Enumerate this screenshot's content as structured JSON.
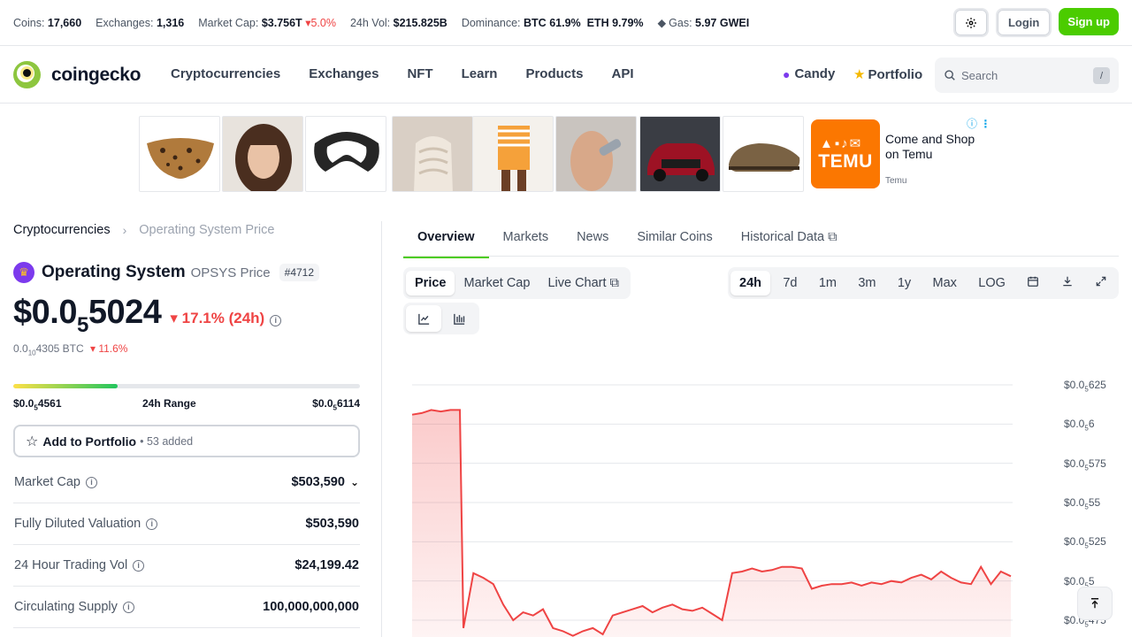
{
  "stats": {
    "coins_label": "Coins:",
    "coins": "17,660",
    "exchanges_label": "Exchanges:",
    "exchanges": "1,316",
    "mcap_label": "Market Cap:",
    "mcap": "$3.756T",
    "mcap_change": "5.0%",
    "vol_label": "24h Vol:",
    "vol": "$215.825B",
    "dominance_label": "Dominance:",
    "btc_label": "BTC",
    "btc": "61.9%",
    "eth_label": "ETH",
    "eth": "9.79%",
    "gas_label": "Gas:",
    "gas": "5.97 GWEI"
  },
  "auth": {
    "login": "Login",
    "signup": "Sign up"
  },
  "nav": {
    "brand": "coingecko",
    "links": [
      "Cryptocurrencies",
      "Exchanges",
      "NFT",
      "Learn",
      "Products",
      "API"
    ],
    "candy": "Candy",
    "portfolio": "Portfolio",
    "search_placeholder": "Search",
    "search_shortcut": "/"
  },
  "ad": {
    "text": "Come and Shop on Temu",
    "brand": "Temu",
    "logo_text": "TEMU"
  },
  "breadcrumb": {
    "parent": "Cryptocurrencies",
    "current": "Operating System Price"
  },
  "coin": {
    "name": "Operating System",
    "symbol_label": "OPSYS Price",
    "rank": "#4712",
    "price_prefix": "$0.0",
    "price_sub": "5",
    "price_rest": "5024",
    "change": "17.1% (24h)",
    "btc_prefix": "0.0",
    "btc_sub": "10",
    "btc_rest": "4305 BTC",
    "btc_change": "11.6%",
    "range_low_prefix": "$0.0",
    "range_low_sub": "5",
    "range_low_rest": "4561",
    "range_label": "24h Range",
    "range_high_prefix": "$0.0",
    "range_high_sub": "5",
    "range_high_rest": "6114",
    "range_position": 0.3,
    "portfolio_btn": "Add to Portfolio",
    "portfolio_added": "• 53 added"
  },
  "metrics": [
    {
      "label": "Market Cap",
      "value": "$503,590"
    },
    {
      "label": "Fully Diluted Valuation",
      "value": "$503,590"
    },
    {
      "label": "24 Hour Trading Vol",
      "value": "$24,199.42"
    },
    {
      "label": "Circulating Supply",
      "value": "100,000,000,000"
    }
  ],
  "tabs": [
    "Overview",
    "Markets",
    "News",
    "Similar Coins",
    "Historical Data"
  ],
  "chart_controls": {
    "types": [
      "Price",
      "Market Cap",
      "Live Chart"
    ],
    "ranges": [
      "24h",
      "7d",
      "1m",
      "3m",
      "1y",
      "Max",
      "LOG"
    ]
  },
  "chart_data": {
    "type": "area",
    "title": "",
    "xlabel": "",
    "ylabel": "",
    "ylim": [
      4.7e-06,
      6.3e-06
    ],
    "y_ticks": [
      {
        "prefix": "$0.0",
        "sub": "5",
        "rest": "625"
      },
      {
        "prefix": "$0.0",
        "sub": "5",
        "rest": "6"
      },
      {
        "prefix": "$0.0",
        "sub": "5",
        "rest": "575"
      },
      {
        "prefix": "$0.0",
        "sub": "5",
        "rest": "55"
      },
      {
        "prefix": "$0.0",
        "sub": "5",
        "rest": "525"
      },
      {
        "prefix": "$0.0",
        "sub": "5",
        "rest": "5"
      },
      {
        "prefix": "$0.0",
        "sub": "5",
        "rest": "475"
      }
    ],
    "y_tick_values": [
      6.25e-06,
      6e-06,
      5.75e-06,
      5.5e-06,
      5.25e-06,
      5e-06,
      4.75e-06
    ],
    "series": [
      {
        "values": [
          6.06e-06,
          6.07e-06,
          6.09e-06,
          6.08e-06,
          6.09e-06,
          6.09e-06,
          4.7e-06,
          5.05e-06,
          5.02e-06,
          4.98e-06,
          4.85e-06,
          4.75e-06,
          4.8e-06,
          4.78e-06,
          4.82e-06,
          4.7e-06,
          4.68e-06,
          4.65e-06,
          4.68e-06,
          4.7e-06,
          4.66e-06,
          4.78e-06,
          4.8e-06,
          4.82e-06,
          4.84e-06,
          4.8e-06,
          4.83e-06,
          4.85e-06,
          4.82e-06,
          4.81e-06,
          4.83e-06,
          4.79e-06,
          4.75e-06,
          5.05e-06,
          5.06e-06,
          5.08e-06,
          5.06e-06,
          5.07e-06,
          5.09e-06,
          5.09e-06,
          5.08e-06,
          4.95e-06,
          4.97e-06,
          4.98e-06,
          4.98e-06,
          4.99e-06,
          4.97e-06,
          4.99e-06,
          4.98e-06,
          5e-06,
          4.99e-06,
          5.02e-06,
          5.04e-06,
          5.01e-06,
          5.06e-06,
          5.02e-06,
          4.99e-06,
          4.98e-06,
          5.09e-06,
          4.98e-06,
          5.06e-06,
          5.03e-06
        ]
      }
    ],
    "color": "#ef4444"
  }
}
